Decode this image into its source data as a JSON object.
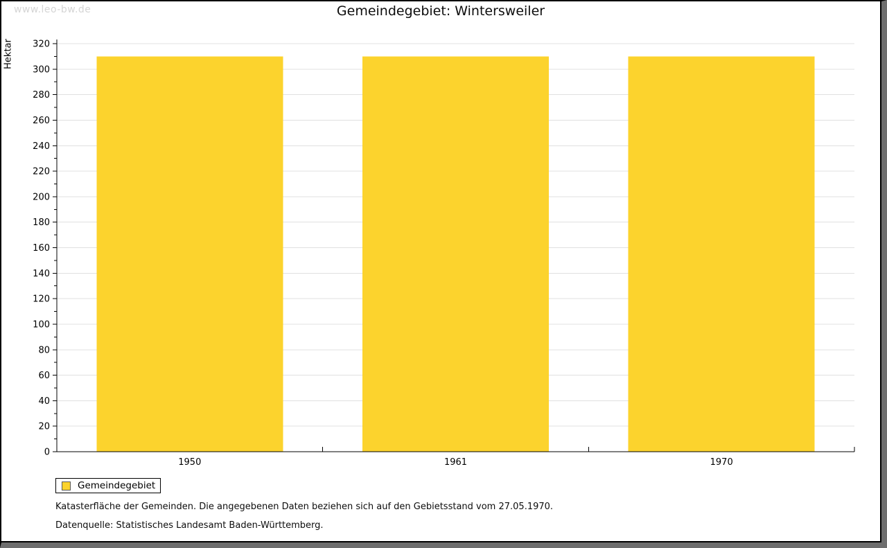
{
  "watermark": "www.leo-bw.de",
  "title": "Gemeindegebiet: Wintersweiler",
  "legend": {
    "label": "Gemeindegebiet"
  },
  "footnotes": [
    "Katasterfläche der Gemeinden. Die angegebenen Daten beziehen sich auf den Gebietsstand vom 27.05.1970.",
    "Datenquelle: Statistisches Landesamt Baden-Württemberg."
  ],
  "colors": {
    "bar": "#FCD32D",
    "bar_border": "#595959",
    "grid": "#E0E0E0",
    "axis": "#000000",
    "text": "#000000",
    "watermark": "#D5D5D5",
    "frame_shadow": "#6E6E6E"
  },
  "chart_data": {
    "type": "bar",
    "title": "Gemeindegebiet: Wintersweiler",
    "categories": [
      "1950",
      "1961",
      "1970"
    ],
    "series": [
      {
        "name": "Gemeindegebiet",
        "values": [
          310,
          310,
          310
        ]
      }
    ],
    "xlabel": "",
    "ylabel": "Hektar",
    "ylim": [
      0,
      320
    ],
    "ytick_step": 20,
    "yminor_tick_step": 10,
    "grid": true,
    "legend_position": "bottom-left",
    "bar_color": "#FCD32D"
  }
}
